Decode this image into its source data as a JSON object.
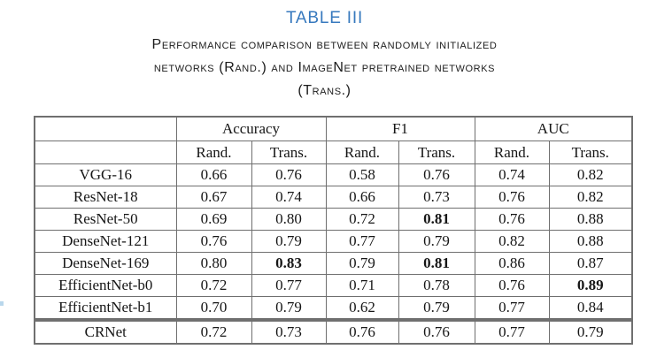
{
  "title": "TABLE III",
  "caption": {
    "line1": "Performance comparison between randomly initialized",
    "line2": "networks (Rand.) and ImageNet pretrained networks",
    "line3": "(Trans.)"
  },
  "colors": {
    "title_blue": "#3779be",
    "border_gray": "#6f6f6f",
    "text_black": "#161616"
  },
  "table": {
    "col_groups": [
      "Accuracy",
      "F1",
      "AUC"
    ],
    "sub_headers": [
      "Rand.",
      "Trans.",
      "Rand.",
      "Trans.",
      "Rand.",
      "Trans."
    ],
    "rows": [
      {
        "model": "VGG-16",
        "values": [
          "0.66",
          "0.76",
          "0.58",
          "0.76",
          "0.74",
          "0.82"
        ],
        "bold": []
      },
      {
        "model": "ResNet-18",
        "values": [
          "0.67",
          "0.74",
          "0.66",
          "0.73",
          "0.76",
          "0.82"
        ],
        "bold": []
      },
      {
        "model": "ResNet-50",
        "values": [
          "0.69",
          "0.80",
          "0.72",
          "0.81",
          "0.76",
          "0.88"
        ],
        "bold": [
          3
        ]
      },
      {
        "model": "DenseNet-121",
        "values": [
          "0.76",
          "0.79",
          "0.77",
          "0.79",
          "0.82",
          "0.88"
        ],
        "bold": []
      },
      {
        "model": "DenseNet-169",
        "values": [
          "0.80",
          "0.83",
          "0.79",
          "0.81",
          "0.86",
          "0.87"
        ],
        "bold": [
          1,
          3
        ]
      },
      {
        "model": "EfficientNet-b0",
        "values": [
          "0.72",
          "0.77",
          "0.71",
          "0.78",
          "0.76",
          "0.89"
        ],
        "bold": [
          5
        ]
      },
      {
        "model": "EfficientNet-b1",
        "values": [
          "0.70",
          "0.79",
          "0.62",
          "0.79",
          "0.77",
          "0.84"
        ],
        "bold": []
      }
    ],
    "footer_row": {
      "model": "CRNet",
      "values": [
        "0.72",
        "0.73",
        "0.76",
        "0.76",
        "0.77",
        "0.79"
      ],
      "bold": []
    }
  }
}
